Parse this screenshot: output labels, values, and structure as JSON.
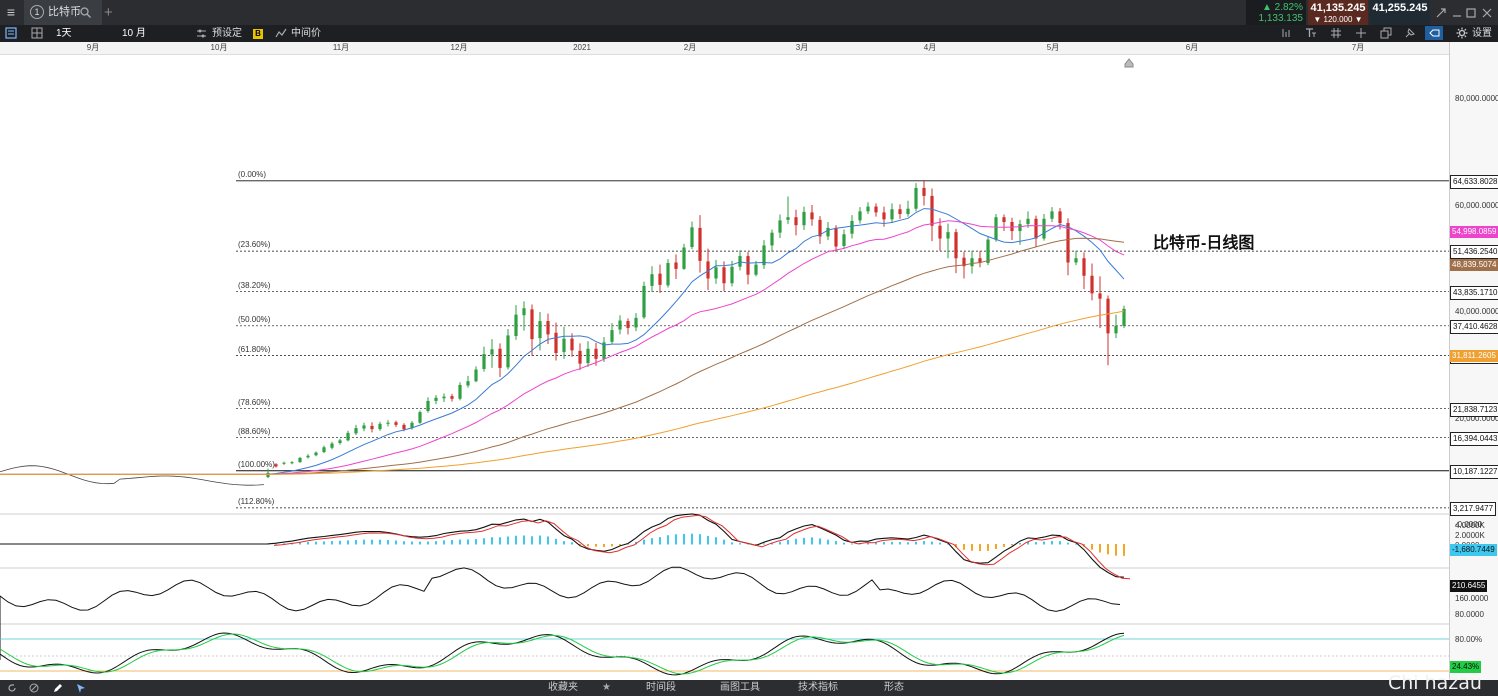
{
  "app": {
    "tab_number": "1",
    "tab_title": "比特币",
    "menu_icon": "hamburger-icon",
    "search_icon": "search-icon",
    "add_icon": "plus-icon"
  },
  "quotes": {
    "change_pct": "▲ 2.82%",
    "change_abs": "1,133.135",
    "bid": "41,135.245",
    "spread": "▼ 120.000 ▼",
    "ask": "41,255.245"
  },
  "toolbar": {
    "interval": "1天",
    "range": "10 月",
    "presets_label": "预设定",
    "price_mode_badge": "B",
    "price_mode_label": "中间价",
    "settings_label": "设置"
  },
  "bottombar": {
    "favorites": "收藏夹",
    "timeframe": "时间段",
    "drawing_tools": "画图工具",
    "indicators": "技术指标",
    "patterns": "形态"
  },
  "watermark": "Chi hazau",
  "colors": {
    "up": "#2ea043",
    "down": "#d0312d",
    "ma20": "#3a7bd5",
    "ma50": "#ee44cc",
    "ma100": "#a0704a",
    "ma200": "#f0a030"
  },
  "chart_data": {
    "type": "candlestick",
    "title": "比特币-日线图",
    "x_tick_labels": [
      "9月",
      "10月",
      "11月",
      "12月",
      "2021",
      "2月",
      "3月",
      "4月",
      "5月",
      "6月",
      "7月"
    ],
    "y_tick_labels": [
      "80,000.0000",
      "60,000.0000",
      "40,000.0000",
      "20,000.0000",
      "-0.0000"
    ],
    "ylim": [
      0,
      80000
    ],
    "grid": false,
    "fibonacci": {
      "levels": [
        {
          "label": "(0.00%)",
          "price": "64,633.8028"
        },
        {
          "label": "(23.60%)",
          "price": "51,436.2540"
        },
        {
          "label": "(38.20%)",
          "price": "43,835.1710"
        },
        {
          "label": "(50.00%)",
          "price": "37,410.4628"
        },
        {
          "label": "(61.80%)",
          "price": "31,811.2605"
        },
        {
          "label": "(78.60%)",
          "price": "21,838.7123"
        },
        {
          "label": "(88.60%)",
          "price": "16,394.0443"
        },
        {
          "label": "(100.00%)",
          "price": "10,187.1227"
        },
        {
          "label": "(112.80%)",
          "price": "3,217.9477"
        }
      ]
    },
    "ma_labels": [
      {
        "price": "54,998.0859",
        "color": "#ee44cc"
      },
      {
        "price": "48,839.5074",
        "color": "#a0704a"
      },
      {
        "price": "31,811.2605",
        "color": "#f0a030"
      }
    ],
    "macd": {
      "ticks": [
        "4.0000K",
        "2.0000K",
        "0.0000"
      ],
      "label": "-1,680.7449"
    },
    "volume": {
      "ticks": [
        "160.0000",
        "80.0000"
      ],
      "label": "210.6455"
    },
    "stoch": {
      "ticks": [
        "80.00%"
      ],
      "label": "24.43%"
    },
    "candles": [
      [
        9000,
        9800,
        8800,
        10600
      ],
      [
        11400,
        11000,
        10800,
        11600
      ],
      [
        11500,
        11700,
        11300,
        11900
      ],
      [
        11600,
        11800,
        11400,
        12000
      ],
      [
        11800,
        12600,
        11700,
        12800
      ],
      [
        12700,
        13000,
        12500,
        13300
      ],
      [
        13100,
        13600,
        12900,
        13800
      ],
      [
        13700,
        14600,
        13500,
        14900
      ],
      [
        14500,
        15300,
        14200,
        15600
      ],
      [
        15400,
        15900,
        15100,
        16200
      ],
      [
        15900,
        17300,
        15700,
        17700
      ],
      [
        17200,
        18200,
        16900,
        18800
      ],
      [
        18100,
        18700,
        17600,
        19200
      ],
      [
        18600,
        18000,
        17400,
        19300
      ],
      [
        18000,
        19000,
        17700,
        19400
      ],
      [
        19000,
        19200,
        18500,
        19700
      ],
      [
        19300,
        18800,
        18400,
        19600
      ],
      [
        18800,
        18000,
        17600,
        19100
      ],
      [
        18200,
        19200,
        17900,
        19500
      ],
      [
        19200,
        21200,
        19000,
        21500
      ],
      [
        21400,
        23300,
        21100,
        24000
      ],
      [
        23300,
        23900,
        22700,
        24400
      ],
      [
        23800,
        24100,
        23100,
        24700
      ],
      [
        24200,
        23700,
        23200,
        24600
      ],
      [
        23700,
        26300,
        23400,
        26800
      ],
      [
        26200,
        27000,
        25800,
        28000
      ],
      [
        27000,
        29200,
        26800,
        29800
      ],
      [
        29300,
        32100,
        28800,
        33500
      ],
      [
        32000,
        33000,
        29500,
        34900
      ],
      [
        33100,
        29500,
        27800,
        34100
      ],
      [
        29600,
        35600,
        29200,
        36800
      ],
      [
        35500,
        39500,
        34800,
        41300
      ],
      [
        39400,
        40700,
        36500,
        42000
      ],
      [
        40500,
        34900,
        31800,
        41400
      ],
      [
        35100,
        38300,
        32800,
        40000
      ],
      [
        38300,
        35800,
        34000,
        39700
      ],
      [
        36100,
        32300,
        30900,
        38000
      ],
      [
        32500,
        35000,
        31200,
        37200
      ],
      [
        35000,
        32800,
        31600,
        36000
      ],
      [
        32700,
        30300,
        29100,
        34100
      ],
      [
        30400,
        33100,
        29700,
        34500
      ],
      [
        33100,
        31200,
        29900,
        34200
      ],
      [
        31200,
        34300,
        30600,
        35300
      ],
      [
        34400,
        36600,
        33900,
        37900
      ],
      [
        36700,
        38400,
        35800,
        39400
      ],
      [
        38300,
        37000,
        35800,
        38800
      ],
      [
        37100,
        38900,
        36400,
        39800
      ],
      [
        39000,
        44900,
        38700,
        45700
      ],
      [
        44900,
        47100,
        43800,
        48600
      ],
      [
        47200,
        45100,
        43600,
        48900
      ],
      [
        45000,
        49200,
        44600,
        49900
      ],
      [
        49300,
        48100,
        46200,
        50800
      ],
      [
        48100,
        52100,
        47900,
        52800
      ],
      [
        52200,
        55900,
        51800,
        57000
      ],
      [
        55800,
        49600,
        47400,
        58200
      ],
      [
        49500,
        46300,
        44100,
        51900
      ],
      [
        46300,
        48400,
        45300,
        49800
      ],
      [
        48400,
        45400,
        43900,
        49500
      ],
      [
        45400,
        48500,
        44800,
        49600
      ],
      [
        48500,
        50500,
        47800,
        51600
      ],
      [
        50500,
        47000,
        45200,
        51300
      ],
      [
        47000,
        48900,
        46700,
        49600
      ],
      [
        48800,
        52500,
        48100,
        53500
      ],
      [
        52500,
        54900,
        51300,
        55500
      ],
      [
        54900,
        57200,
        53900,
        58300
      ],
      [
        57300,
        57800,
        56500,
        61700
      ],
      [
        57800,
        56300,
        54400,
        59200
      ],
      [
        56300,
        58800,
        55400,
        59800
      ],
      [
        58700,
        57400,
        56200,
        60100
      ],
      [
        57300,
        54200,
        52800,
        58000
      ],
      [
        54200,
        55800,
        53500,
        56900
      ],
      [
        55800,
        52300,
        51300,
        56300
      ],
      [
        52400,
        54600,
        51800,
        55500
      ],
      [
        54700,
        57100,
        53800,
        58200
      ],
      [
        57200,
        58900,
        56600,
        59700
      ],
      [
        58900,
        59800,
        58400,
        60600
      ],
      [
        59800,
        58700,
        57900,
        60400
      ],
      [
        58700,
        57400,
        56000,
        59800
      ],
      [
        57400,
        59300,
        56800,
        60400
      ],
      [
        59300,
        58400,
        57500,
        60200
      ],
      [
        58400,
        59400,
        57900,
        60900
      ],
      [
        59400,
        63300,
        58900,
        64200
      ],
      [
        63300,
        61800,
        60000,
        64800
      ],
      [
        61800,
        56200,
        53300,
        63200
      ],
      [
        56200,
        53800,
        51500,
        57600
      ],
      [
        53800,
        55000,
        50100,
        56600
      ],
      [
        55000,
        50100,
        47300,
        55600
      ],
      [
        50200,
        48600,
        46300,
        51300
      ],
      [
        48600,
        50100,
        47200,
        51500
      ],
      [
        50100,
        49200,
        48400,
        51400
      ],
      [
        49200,
        53600,
        48800,
        54200
      ],
      [
        53600,
        57800,
        53200,
        58400
      ],
      [
        57800,
        56900,
        55200,
        58300
      ],
      [
        56900,
        55200,
        53500,
        57700
      ],
      [
        55200,
        56500,
        52600,
        57300
      ],
      [
        56500,
        57500,
        55800,
        58900
      ],
      [
        57500,
        53800,
        52300,
        58100
      ],
      [
        53800,
        57500,
        53400,
        58400
      ],
      [
        57500,
        58900,
        56900,
        59700
      ],
      [
        58900,
        56700,
        55500,
        59500
      ],
      [
        56700,
        49300,
        46900,
        57600
      ],
      [
        49300,
        50100,
        48800,
        51500
      ],
      [
        50100,
        46800,
        44300,
        51200
      ],
      [
        46800,
        43500,
        42200,
        49100
      ],
      [
        43500,
        42500,
        37000,
        46700
      ],
      [
        42500,
        36000,
        30000,
        43100
      ],
      [
        36000,
        37400,
        35100,
        39500
      ],
      [
        37400,
        40600,
        37000,
        41200
      ]
    ]
  }
}
